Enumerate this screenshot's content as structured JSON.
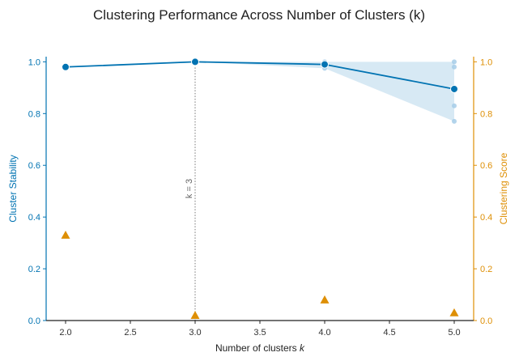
{
  "chart_data": {
    "type": "line",
    "title": "Clustering Performance Across Number of Clusters (k)",
    "xlabel": "Number of clusters ",
    "xlabel_italic": "k",
    "ylabel_left": "Cluster Stability",
    "ylabel_right": "Clustering Score",
    "xlim": [
      1.85,
      5.15
    ],
    "ylim_left": [
      0,
      1.02
    ],
    "ylim_right": [
      0,
      1.02
    ],
    "x_ticks": [
      2.0,
      2.5,
      3.0,
      3.5,
      4.0,
      4.5,
      5.0
    ],
    "x_tick_labels": [
      "2.0",
      "2.5",
      "3.0",
      "3.5",
      "4.0",
      "4.5",
      "5.0"
    ],
    "y_ticks": [
      0.0,
      0.2,
      0.4,
      0.6,
      0.8,
      1.0
    ],
    "y_tick_labels": [
      "0.0",
      "0.2",
      "0.4",
      "0.6",
      "0.8",
      "1.0"
    ],
    "grid": false,
    "colors": {
      "stability": "#0173b2",
      "score": "#de8f05",
      "band": "#c6dff0",
      "raw_points": "#a6cde8",
      "annotation": "#666666"
    },
    "series": [
      {
        "axis": "left",
        "style": "line-with-circles",
        "x": [
          2,
          3,
          4,
          5
        ],
        "y": [
          0.98,
          1.0,
          0.99,
          0.895
        ],
        "band_lower": [
          0.98,
          1.0,
          0.975,
          0.77
        ],
        "band_upper": [
          0.98,
          1.0,
          1.0,
          1.0
        ]
      },
      {
        "axis": "left",
        "style": "raw-points",
        "x": [
          2,
          3,
          4,
          4,
          4,
          5,
          5,
          5,
          5
        ],
        "y": [
          0.98,
          1.0,
          1.0,
          0.99,
          0.975,
          1.0,
          0.98,
          0.83,
          0.77
        ]
      },
      {
        "axis": "right",
        "style": "triangles",
        "x": [
          2,
          3,
          4,
          5
        ],
        "y": [
          0.33,
          0.02,
          0.08,
          0.03
        ]
      }
    ],
    "annotation": {
      "text": "k = 3",
      "x": 3.0
    }
  }
}
